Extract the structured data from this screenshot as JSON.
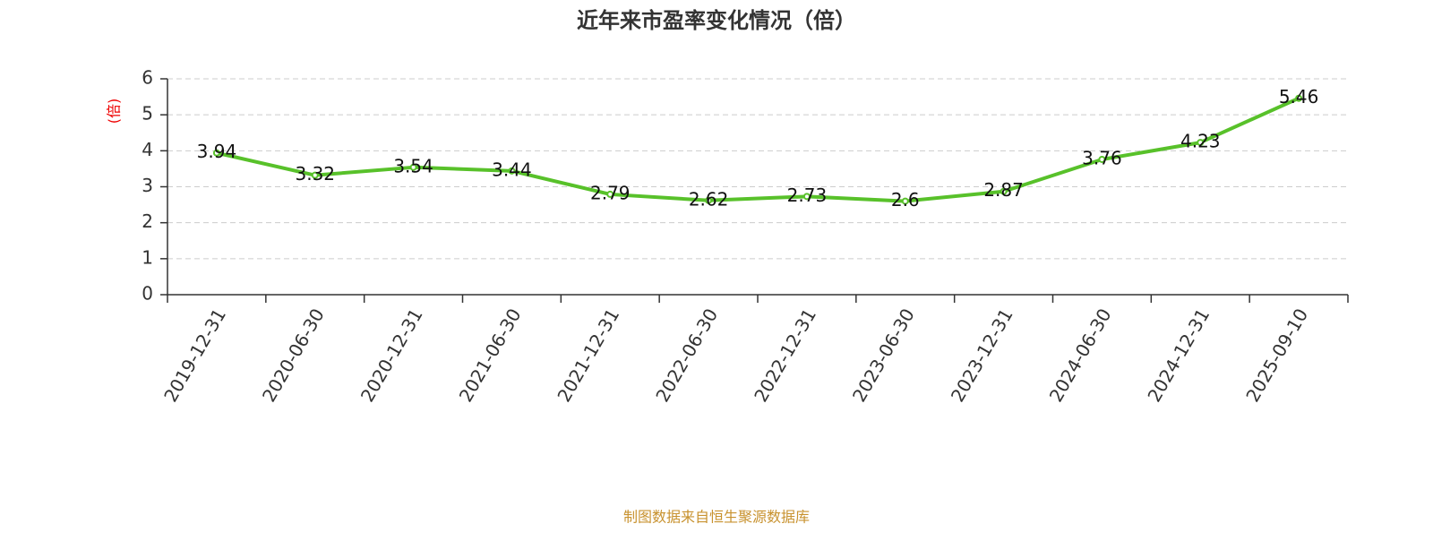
{
  "chart_data": {
    "type": "line",
    "title": "近年来市盈率变化情况（倍）",
    "y_label": "(倍)",
    "source": "制图数据来自恒生聚源数据库",
    "categories": [
      "2019-12-31",
      "2020-06-30",
      "2020-12-31",
      "2021-06-30",
      "2021-12-31",
      "2022-06-30",
      "2022-12-31",
      "2023-06-30",
      "2023-12-31",
      "2024-06-30",
      "2024-12-31",
      "2025-09-10"
    ],
    "values": [
      3.94,
      3.32,
      3.54,
      3.44,
      2.79,
      2.62,
      2.73,
      2.6,
      2.87,
      3.76,
      4.23,
      5.46
    ],
    "color": "#58c12a",
    "ylim": [
      0,
      6
    ],
    "yticks": [
      0,
      1,
      2,
      3,
      4,
      5,
      6
    ],
    "grid": true
  }
}
